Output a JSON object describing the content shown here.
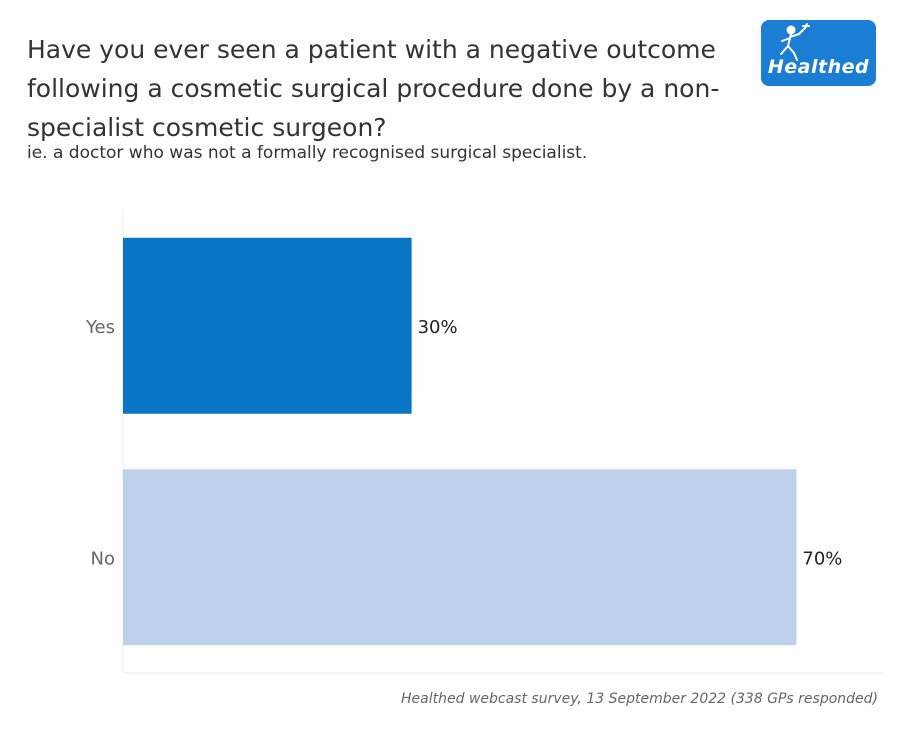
{
  "header": {
    "title": "Have you ever seen a patient with a negative outcome following a cosmetic surgical procedure done by a non-specialist cosmetic surgeon?",
    "subtitle": "ie. a doctor who was not a formally recognised surgical specialist."
  },
  "logo": {
    "text": "Healthed",
    "icon": "hermes-figure-icon",
    "background": "#1a7fd4"
  },
  "footer": {
    "source": "Healthed webcast survey, 13 September 2022 (338 GPs responded)"
  },
  "chart_data": {
    "type": "bar",
    "orientation": "horizontal",
    "categories": [
      "Yes",
      "No"
    ],
    "values": [
      30,
      70
    ],
    "value_labels": [
      "30%",
      "70%"
    ],
    "colors": [
      "#0875c5",
      "#bfd1ea"
    ],
    "xlim": [
      0,
      79
    ],
    "grid": false,
    "legend": "none"
  }
}
